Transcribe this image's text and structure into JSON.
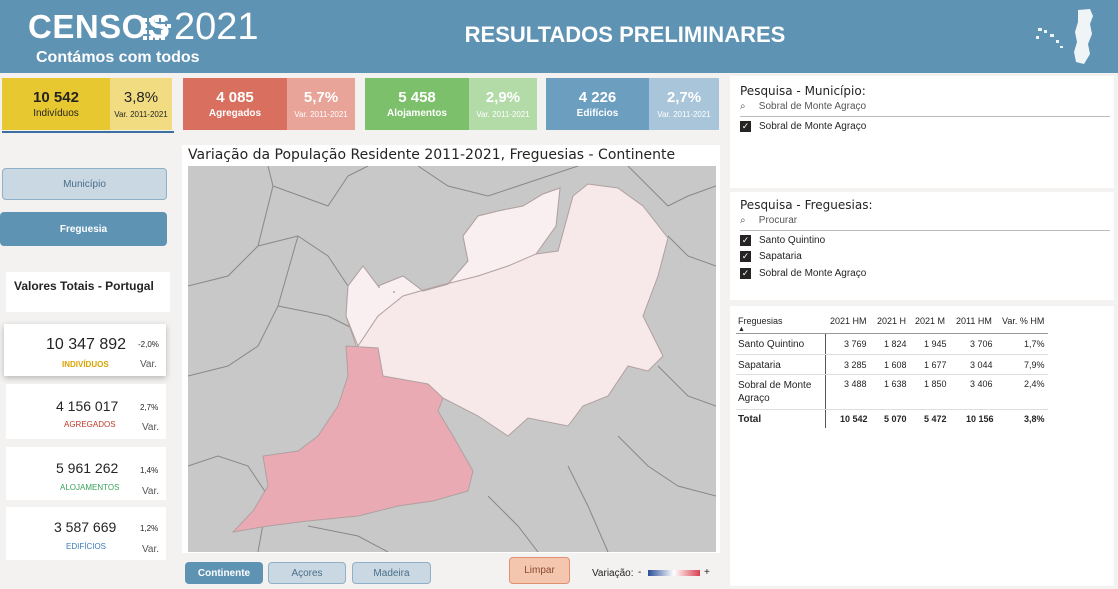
{
  "header": {
    "logo_word": "CENSOS",
    "logo_year": "2021",
    "tagline": "Contámos com todos",
    "title": "RESULTADOS PRELIMINARES"
  },
  "kpis": [
    {
      "value": "10 542",
      "label": "Indivíduos",
      "pct": "3,8%",
      "var": "Var. 2011-2021",
      "color": "#e8c830",
      "side_color": "#f1dc82"
    },
    {
      "value": "4 085",
      "label": "Agregados",
      "pct": "5,7%",
      "var": "Var. 2011-2021",
      "color": "#d9705f",
      "side_color": "#e8a499"
    },
    {
      "value": "5 458",
      "label": "Alojamentos",
      "pct": "2,9%",
      "var": "Var. 2011-2021",
      "color": "#7dc06c",
      "side_color": "#b3dba8"
    },
    {
      "value": "4 226",
      "label": "Edifícios",
      "pct": "2,7%",
      "var": "Var. 2011-2021",
      "color": "#6c9ec0",
      "side_color": "#a9c5da"
    }
  ],
  "left_panel": {
    "municipio_button": "Município",
    "freguesia_button": "Freguesia",
    "totals_title": "Valores Totais - Portugal",
    "totals": [
      {
        "value": "10 347 892",
        "pct": "-2,0%",
        "var": "Var.",
        "label": "INDIVÍDUOS",
        "color": "#d9a400"
      },
      {
        "value": "4 156 017",
        "pct": "2,7%",
        "var": "Var.",
        "label": "AGREGADOS",
        "color": "#c0392b"
      },
      {
        "value": "5 961 262",
        "pct": "1,4%",
        "var": "Var.",
        "label": "ALOJAMENTOS",
        "color": "#3aa35a"
      },
      {
        "value": "3 587 669",
        "pct": "1,2%",
        "var": "Var.",
        "label": "EDIFÍCIOS",
        "color": "#3b7bbf"
      }
    ]
  },
  "map": {
    "title": "Variação da População Residente 2011-2021, Freguesias - Continente"
  },
  "bottom_bar": {
    "continente": "Continente",
    "acores": "Açores",
    "madeira": "Madeira",
    "limpar": "Limpar",
    "legend_label": "Variação:",
    "legend_minus": "-",
    "legend_plus": "+"
  },
  "municipio_slicer": {
    "title": "Pesquisa - Município:",
    "search_value": "Sobral de Monte Agraço",
    "items": [
      "Sobral de Monte Agraço"
    ]
  },
  "freguesia_slicer": {
    "title": "Pesquisa - Freguesias:",
    "search_placeholder": "Procurar",
    "items": [
      "Santo Quintino",
      "Sapataria",
      "Sobral de Monte Agraço"
    ]
  },
  "table": {
    "headers": [
      "Freguesias",
      "2021 HM",
      "2021 H",
      "2021 M",
      "2011 HM",
      "Var. % HM"
    ],
    "rows": [
      [
        "Santo Quintino",
        "3 769",
        "1 824",
        "1 945",
        "3 706",
        "1,7%"
      ],
      [
        "Sapataria",
        "3 285",
        "1 608",
        "1 677",
        "3 044",
        "7,9%"
      ],
      [
        "Sobral de Monte Agraço",
        "3 488",
        "1 638",
        "1 850",
        "3 406",
        "2,4%"
      ]
    ],
    "total": [
      "Total",
      "10 542",
      "5 070",
      "5 472",
      "10 156",
      "3,8%"
    ]
  }
}
